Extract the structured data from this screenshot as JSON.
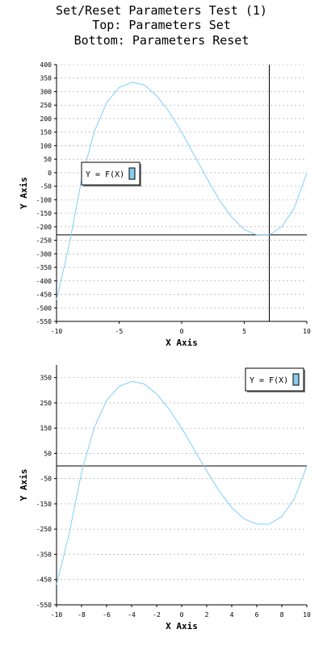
{
  "title_lines": [
    "Set/Reset Parameters Test (1)",
    "Top: Parameters Set",
    "Bottom: Parameters Reset"
  ],
  "colors": {
    "curve": "#7fcfff",
    "legend_swatch": "#87ceeb",
    "grid": "#a0a0a0",
    "axis": "#000000"
  },
  "chart_data": [
    {
      "type": "line",
      "panel": "top",
      "xlabel": "X Axis",
      "ylabel": "Y Axis",
      "xlim": [
        -10,
        10
      ],
      "ylim": [
        -550,
        400
      ],
      "x_ticks": [
        -10,
        -5,
        0,
        5,
        10
      ],
      "y_ticks": [
        400,
        350,
        300,
        250,
        200,
        150,
        100,
        50,
        0,
        -50,
        -100,
        -150,
        -200,
        -250,
        -300,
        -350,
        -400,
        -450,
        -500,
        -550
      ],
      "crosshair": {
        "x": 7,
        "y": -230
      },
      "legend": {
        "label": "Y = F(X)",
        "placement": "left"
      },
      "series": [
        {
          "name": "Y = F(X)",
          "x": [
            -10,
            -9,
            -8,
            -7,
            -6,
            -5,
            -4,
            -3,
            -2,
            -1,
            0,
            1,
            2,
            3,
            4,
            5,
            6,
            7,
            8,
            9,
            10
          ],
          "y": [
            -470,
            -270,
            -25,
            150,
            260,
            315,
            335,
            325,
            285,
            225,
            150,
            65,
            -20,
            -100,
            -165,
            -210,
            -230,
            -230,
            -200,
            -130,
            0
          ]
        }
      ]
    },
    {
      "type": "line",
      "panel": "bottom",
      "xlabel": "X Axis",
      "ylabel": "Y Axis",
      "xlim": [
        -10,
        10
      ],
      "ylim": [
        -550,
        400
      ],
      "x_ticks": [
        -10,
        -8,
        -6,
        -4,
        -2,
        0,
        2,
        4,
        6,
        8,
        10
      ],
      "y_ticks": [
        350,
        250,
        150,
        50,
        -50,
        -150,
        -250,
        -350,
        -450,
        -550
      ],
      "zero_line": 0,
      "legend": {
        "label": "Y = F(X)",
        "placement": "top-right"
      },
      "series": [
        {
          "name": "Y = F(X)",
          "x": [
            -10,
            -9,
            -8,
            -7,
            -6,
            -5,
            -4,
            -3,
            -2,
            -1,
            0,
            1,
            2,
            3,
            4,
            5,
            6,
            7,
            8,
            9,
            10
          ],
          "y": [
            -470,
            -270,
            -25,
            150,
            260,
            315,
            335,
            325,
            285,
            225,
            150,
            65,
            -20,
            -100,
            -165,
            -210,
            -230,
            -230,
            -200,
            -130,
            0
          ]
        }
      ]
    }
  ]
}
